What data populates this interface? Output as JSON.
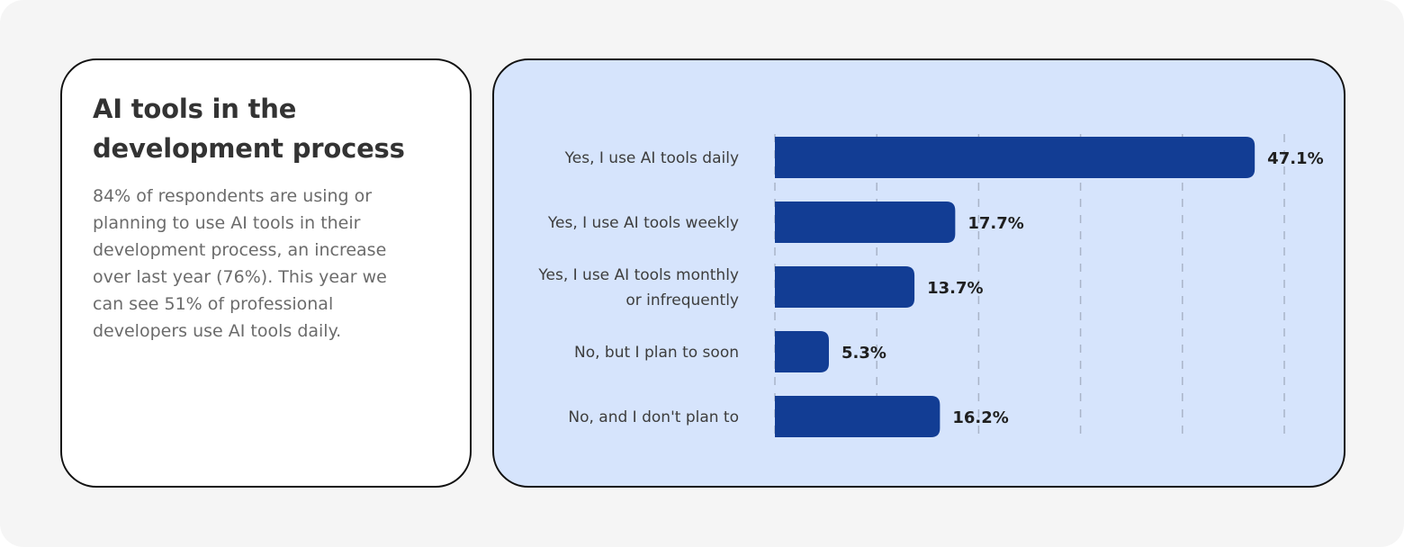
{
  "info": {
    "title_line1": "AI tools in the",
    "title_line2": "development process",
    "body_lines": [
      "84% of respondents are using or",
      "planning to use AI tools in their",
      "development process, an increase",
      "over last year (76%). This year we",
      "can see 51% of professional",
      "developers use AI tools daily."
    ]
  },
  "colors": {
    "bar": "#123d94",
    "panel": "#d6e4fc",
    "grid": "#a9b4c8"
  },
  "chart_data": {
    "type": "bar",
    "orientation": "horizontal",
    "categories": [
      [
        "Yes, I use AI tools daily"
      ],
      [
        "Yes, I use AI tools weekly"
      ],
      [
        "Yes, I use AI tools monthly",
        "or infrequently"
      ],
      [
        "No, but I plan to soon"
      ],
      [
        "No, and I don't plan to"
      ]
    ],
    "values": [
      47.1,
      17.7,
      13.7,
      5.3,
      16.2
    ],
    "value_labels": [
      "47.1%",
      "17.7%",
      "13.7%",
      "5.3%",
      "16.2%"
    ],
    "xlim": [
      0,
      50
    ],
    "grid": true,
    "grid_style": "dashed-vertical"
  }
}
